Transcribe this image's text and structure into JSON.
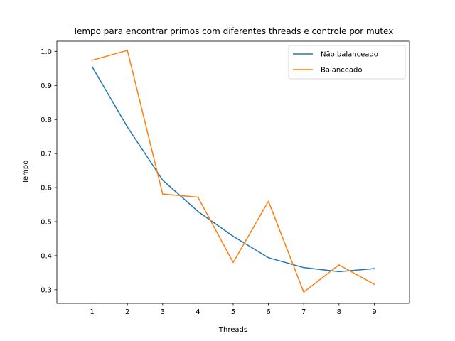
{
  "chart_data": {
    "type": "line",
    "title": "Tempo para encontrar primos com diferentes threads e controle por mutex",
    "xlabel": "Threads",
    "ylabel": "Tempo",
    "x": [
      1,
      2,
      3,
      4,
      5,
      6,
      7,
      8,
      9
    ],
    "xlim": [
      0,
      10
    ],
    "ylim": [
      0.26,
      1.03
    ],
    "xticks": [
      1,
      2,
      3,
      4,
      5,
      6,
      7,
      8,
      9
    ],
    "yticks": [
      0.3,
      0.4,
      0.5,
      0.6,
      0.7,
      0.8,
      0.9,
      1.0
    ],
    "grid": false,
    "legend_position": "top-right",
    "series": [
      {
        "name": "Não balanceado",
        "color": "#1f77b4",
        "values": [
          0.955,
          0.778,
          0.622,
          0.53,
          0.457,
          0.394,
          0.365,
          0.353,
          0.362
        ]
      },
      {
        "name": "Balanceado",
        "color": "#ff7f0e",
        "values": [
          0.974,
          1.003,
          0.581,
          0.572,
          0.38,
          0.56,
          0.293,
          0.373,
          0.316
        ]
      }
    ]
  }
}
